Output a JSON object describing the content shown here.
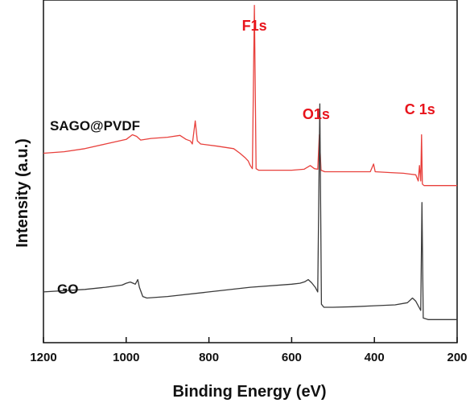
{
  "chart_data": {
    "type": "line",
    "title": "",
    "xlabel": "Binding Energy (eV)",
    "ylabel": "Intensity (a.u.)",
    "xlim": [
      1200,
      200
    ],
    "x_reversed": true,
    "x_ticks": [
      "1200",
      "1000",
      "800",
      "600",
      "400",
      "200"
    ],
    "y_ticks": false,
    "grid": false,
    "series": [
      {
        "name": "SAGO@PVDF",
        "color": "#e8403c",
        "points": [
          [
            1200,
            0.56
          ],
          [
            1150,
            0.565
          ],
          [
            1100,
            0.575
          ],
          [
            1050,
            0.59
          ],
          [
            1000,
            0.605
          ],
          [
            985,
            0.62
          ],
          [
            975,
            0.615
          ],
          [
            965,
            0.603
          ],
          [
            940,
            0.608
          ],
          [
            900,
            0.612
          ],
          [
            870,
            0.618
          ],
          [
            855,
            0.605
          ],
          [
            845,
            0.6
          ],
          [
            840,
            0.59
          ],
          [
            833,
            0.665
          ],
          [
            828,
            0.6
          ],
          [
            820,
            0.59
          ],
          [
            780,
            0.583
          ],
          [
            740,
            0.575
          ],
          [
            725,
            0.56
          ],
          [
            712,
            0.545
          ],
          [
            705,
            0.535
          ],
          [
            700,
            0.52
          ],
          [
            695,
            0.51
          ],
          [
            690,
            1.04
          ],
          [
            686,
            0.51
          ],
          [
            680,
            0.505
          ],
          [
            650,
            0.505
          ],
          [
            600,
            0.505
          ],
          [
            570,
            0.508
          ],
          [
            555,
            0.52
          ],
          [
            545,
            0.51
          ],
          [
            537,
            0.508
          ],
          [
            533,
            0.62
          ],
          [
            529,
            0.505
          ],
          [
            520,
            0.5
          ],
          [
            480,
            0.5
          ],
          [
            440,
            0.5
          ],
          [
            410,
            0.5
          ],
          [
            402,
            0.525
          ],
          [
            398,
            0.5
          ],
          [
            360,
            0.497
          ],
          [
            330,
            0.495
          ],
          [
            300,
            0.49
          ],
          [
            294,
            0.47
          ],
          [
            291,
            0.52
          ],
          [
            288,
            0.47
          ],
          [
            286,
            0.62
          ],
          [
            284,
            0.46
          ],
          [
            280,
            0.455
          ],
          [
            250,
            0.455
          ],
          [
            220,
            0.455
          ],
          [
            200,
            0.455
          ]
        ]
      },
      {
        "name": "GO",
        "color": "#3a3a3a",
        "points": [
          [
            1200,
            0.11
          ],
          [
            1100,
            0.118
          ],
          [
            1050,
            0.125
          ],
          [
            1010,
            0.132
          ],
          [
            1000,
            0.138
          ],
          [
            990,
            0.142
          ],
          [
            983,
            0.138
          ],
          [
            978,
            0.135
          ],
          [
            972,
            0.15
          ],
          [
            968,
            0.125
          ],
          [
            960,
            0.095
          ],
          [
            950,
            0.09
          ],
          [
            900,
            0.095
          ],
          [
            800,
            0.11
          ],
          [
            700,
            0.125
          ],
          [
            600,
            0.135
          ],
          [
            580,
            0.138
          ],
          [
            568,
            0.143
          ],
          [
            560,
            0.15
          ],
          [
            552,
            0.14
          ],
          [
            543,
            0.125
          ],
          [
            537,
            0.11
          ],
          [
            532,
            0.72
          ],
          [
            528,
            0.07
          ],
          [
            522,
            0.06
          ],
          [
            500,
            0.06
          ],
          [
            450,
            0.062
          ],
          [
            400,
            0.065
          ],
          [
            350,
            0.068
          ],
          [
            320,
            0.075
          ],
          [
            308,
            0.09
          ],
          [
            300,
            0.08
          ],
          [
            292,
            0.06
          ],
          [
            288,
            0.05
          ],
          [
            285,
            0.4
          ],
          [
            282,
            0.025
          ],
          [
            270,
            0.02
          ],
          [
            230,
            0.02
          ],
          [
            200,
            0.02
          ]
        ]
      }
    ],
    "series_labels": [
      "SAGO@PVDF",
      "GO"
    ],
    "peak_annotations": [
      {
        "text": "F1s",
        "x": 690
      },
      {
        "text": "O1s",
        "x": 533
      },
      {
        "text": "C 1s",
        "x": 286
      }
    ]
  }
}
